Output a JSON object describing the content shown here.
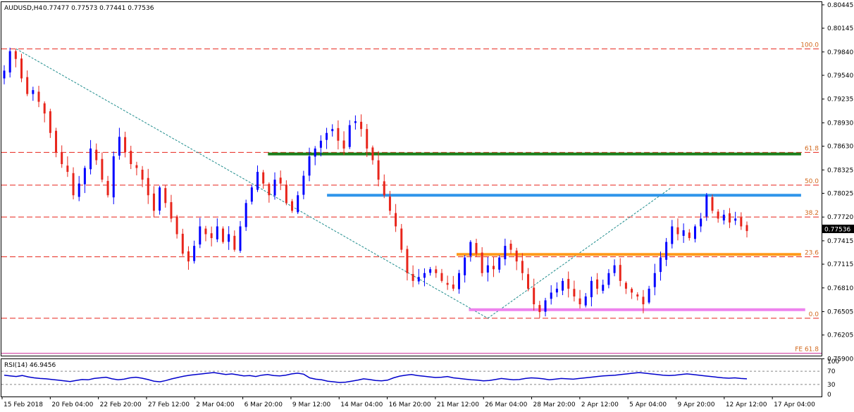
{
  "header": {
    "symbol": "AUDUSD,H4",
    "ohlc": "0.77477 0.77573 0.77441 0.77536"
  },
  "rsi": {
    "label": "RSI(14) 46.9456",
    "ticks": [
      "100",
      "70",
      "30",
      "0"
    ],
    "values": [
      58,
      56,
      54,
      57,
      53,
      50,
      48,
      47,
      45,
      43,
      41,
      39,
      42,
      45,
      44,
      48,
      50,
      52,
      47,
      44,
      46,
      50,
      52,
      49,
      45,
      40,
      38,
      42,
      47,
      51,
      55,
      58,
      60,
      62,
      64,
      66,
      63,
      60,
      62,
      59,
      56,
      57,
      54,
      58,
      60,
      57,
      56,
      58,
      62,
      64,
      61,
      50,
      46,
      44,
      40,
      38,
      36,
      37,
      40,
      43,
      47,
      45,
      42,
      41,
      43,
      50,
      55,
      58,
      60,
      57,
      55,
      53,
      51,
      52,
      54,
      50,
      48,
      46,
      44,
      43,
      41,
      42,
      45,
      48,
      46,
      44,
      45,
      48,
      50,
      49,
      47,
      44,
      46,
      48,
      47,
      46,
      48,
      50,
      52,
      54,
      56,
      57,
      58,
      60,
      62,
      64,
      66,
      64,
      62,
      60,
      58,
      57,
      58,
      60,
      62,
      60,
      58,
      56,
      54,
      52,
      50,
      49,
      50,
      48,
      47
    ]
  },
  "colors": {
    "bull": "#0000ff",
    "bear": "#e8251b",
    "fib_text": "#d2691e",
    "green_line": "#1a7f1a",
    "blue_line": "#2f95ea",
    "orange_line": "#ff9a1a",
    "violet_line": "#ee82ee",
    "fe_line": "#cc3399",
    "rsi_line": "#0000cc",
    "price_box": "#000000"
  },
  "chart_data": {
    "type": "candlestick",
    "symbol": "AUDUSD",
    "timeframe": "H4",
    "ylim": [
      0.7594,
      0.8048
    ],
    "y_ticks": [
      "0.80445",
      "0.80145",
      "0.79840",
      "0.79540",
      "0.79235",
      "0.78930",
      "0.78630",
      "0.78325",
      "0.78025",
      "0.77720",
      "0.77415",
      "0.77115",
      "0.76810",
      "0.76505",
      "0.76205",
      "0.75900"
    ],
    "current_price": "0.77536",
    "x_ticks": [
      "15 Feb 2018",
      "20 Feb 04:00",
      "22 Feb 20:00",
      "27 Feb 12:00",
      "2 Mar 04:00",
      "6 Mar 20:00",
      "9 Mar 12:00",
      "14 Mar 04:00",
      "16 Mar 20:00",
      "21 Mar 12:00",
      "26 Mar 04:00",
      "28 Mar 20:00",
      "2 Apr 12:00",
      "5 Apr 04:00",
      "9 Apr 20:00",
      "12 Apr 12:00",
      "17 Apr 04:00"
    ],
    "fib_levels": [
      {
        "label": "100.0",
        "price": 0.7988
      },
      {
        "label": "61.8",
        "price": 0.7855
      },
      {
        "label": "50.0",
        "price": 0.7813
      },
      {
        "label": "38.2",
        "price": 0.7772
      },
      {
        "label": "23.6",
        "price": 0.7721
      },
      {
        "label": "0.0",
        "price": 0.7642
      },
      {
        "label": "FE 61.8",
        "price": 0.7597
      }
    ],
    "levels": [
      {
        "name": "green",
        "price": 0.7853,
        "from": 0.325,
        "to": 0.975
      },
      {
        "name": "blue",
        "price": 0.78,
        "from": 0.397,
        "to": 0.975
      },
      {
        "name": "orange",
        "price": 0.7724,
        "from": 0.555,
        "to": 0.975
      },
      {
        "name": "violet",
        "price": 0.7653,
        "from": 0.57,
        "to": 0.98
      }
    ],
    "trendlines": [
      {
        "x1": 0.018,
        "y1": 0.7988,
        "x2": 0.593,
        "y2": 0.7642
      },
      {
        "x1": 0.593,
        "y1": 0.7642,
        "x2": 0.817,
        "y2": 0.781
      }
    ],
    "close_path": [
      0.796,
      0.7985,
      0.7975,
      0.795,
      0.793,
      0.7935,
      0.792,
      0.7905,
      0.788,
      0.7855,
      0.784,
      0.783,
      0.78,
      0.7815,
      0.7835,
      0.786,
      0.7845,
      0.782,
      0.78,
      0.785,
      0.7875,
      0.7855,
      0.784,
      0.7835,
      0.782,
      0.78,
      0.778,
      0.781,
      0.779,
      0.777,
      0.775,
      0.7725,
      0.7715,
      0.7735,
      0.776,
      0.775,
      0.7745,
      0.776,
      0.774,
      0.775,
      0.773,
      0.776,
      0.779,
      0.781,
      0.783,
      0.7815,
      0.78,
      0.782,
      0.7815,
      0.779,
      0.778,
      0.78,
      0.7825,
      0.785,
      0.786,
      0.787,
      0.788,
      0.7885,
      0.787,
      0.786,
      0.789,
      0.7895,
      0.7885,
      0.786,
      0.7845,
      0.782,
      0.78,
      0.778,
      0.776,
      0.773,
      0.77,
      0.769,
      0.7695,
      0.77,
      0.7705,
      0.77,
      0.769,
      0.7685,
      0.768,
      0.77,
      0.772,
      0.774,
      0.7725,
      0.77,
      0.771,
      0.7705,
      0.772,
      0.7735,
      0.773,
      0.7715,
      0.77,
      0.768,
      0.766,
      0.765,
      0.7665,
      0.7675,
      0.768,
      0.769,
      0.768,
      0.767,
      0.766,
      0.767,
      0.769,
      0.768,
      0.7685,
      0.77,
      0.771,
      0.769,
      0.768,
      0.7675,
      0.767,
      0.766,
      0.768,
      0.77,
      0.772,
      0.774,
      0.776,
      0.775,
      0.7755,
      0.7745,
      0.776,
      0.777,
      0.78,
      0.778,
      0.777,
      0.7775,
      0.7765,
      0.777,
      0.776,
      0.7754
    ]
  }
}
